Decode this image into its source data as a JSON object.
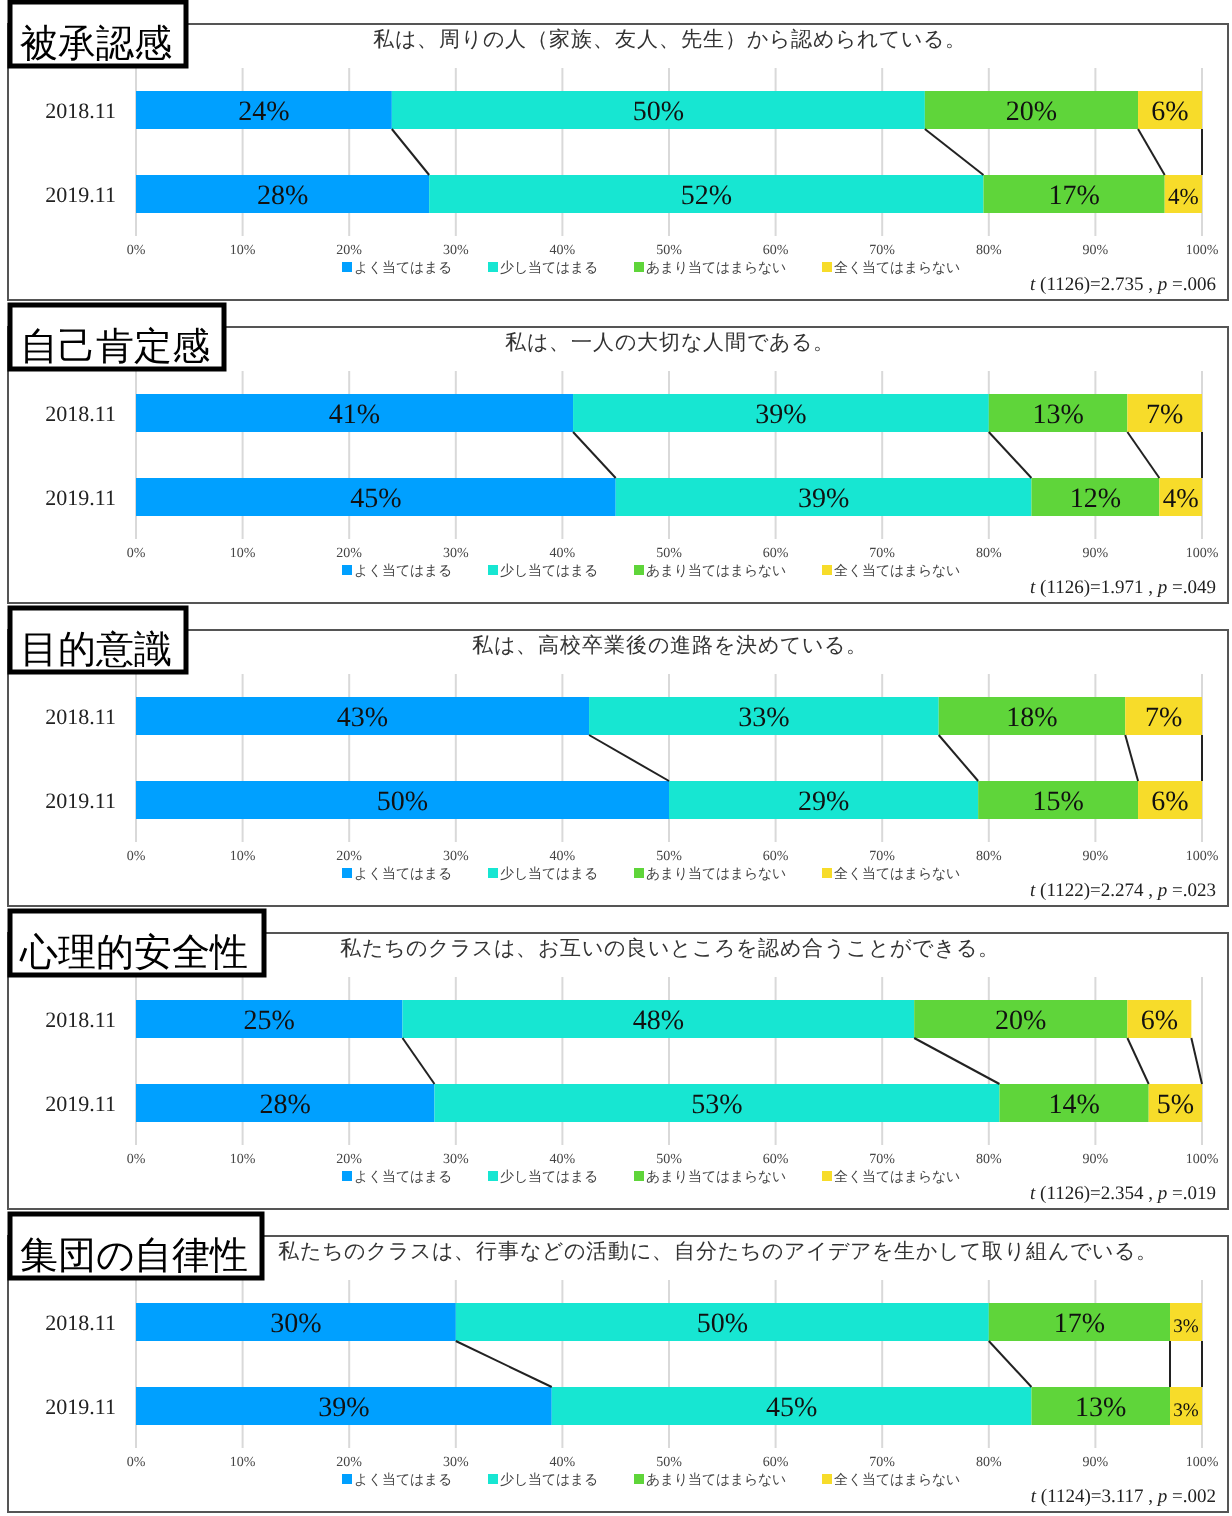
{
  "chart_data": [
    {
      "type": "bar",
      "orientation": "horizontal",
      "stacked": true,
      "title": "被承認感",
      "subtitle": "私は、周りの人（家族、友人、先生）から認められている。",
      "categories": [
        "2018.11",
        "2019.11"
      ],
      "xlim": [
        0,
        100
      ],
      "xticks": [
        {
          "value": 0,
          "label": "0%"
        },
        {
          "value": 10,
          "label": "10%"
        },
        {
          "value": 20,
          "label": "20%"
        },
        {
          "value": 30,
          "label": "30%"
        },
        {
          "value": 40,
          "label": "40%"
        },
        {
          "value": 50,
          "label": "50%"
        },
        {
          "value": 60,
          "label": "60%"
        },
        {
          "value": 70,
          "label": "70%"
        },
        {
          "value": 80,
          "label": "80%"
        },
        {
          "value": 90,
          "label": "90%"
        },
        {
          "value": 100,
          "label": "100%"
        }
      ],
      "grid": "x",
      "legend": "bottom",
      "annotations": [
        "*t* (1126)=2.735 , *p* =.006"
      ],
      "series": [
        {
          "name": "よく当てはまる",
          "color": "#00a0ff",
          "values": [
            24,
            27.5
          ],
          "value_labels": [
            "24%",
            "28%"
          ]
        },
        {
          "name": "少し当てはまる",
          "color": "#17e6d2",
          "values": [
            50,
            52
          ],
          "value_labels": [
            "50%",
            "52%"
          ]
        },
        {
          "name": "あまり当てはまらない",
          "color": "#5fd53a",
          "values": [
            20,
            17
          ],
          "value_labels": [
            "20%",
            "17%"
          ]
        },
        {
          "name": "全く当てはまらない",
          "color": "#f7dc2a",
          "values": [
            6,
            3.5
          ],
          "value_labels": [
            "6%",
            "4%"
          ]
        }
      ]
    },
    {
      "type": "bar",
      "orientation": "horizontal",
      "stacked": true,
      "title": "自己肯定感",
      "subtitle": "私は、一人の大切な人間である。",
      "categories": [
        "2018.11",
        "2019.11"
      ],
      "xlim": [
        0,
        100
      ],
      "xticks": [
        {
          "value": 0,
          "label": "0%"
        },
        {
          "value": 10,
          "label": "10%"
        },
        {
          "value": 20,
          "label": "20%"
        },
        {
          "value": 30,
          "label": "30%"
        },
        {
          "value": 40,
          "label": "40%"
        },
        {
          "value": 50,
          "label": "50%"
        },
        {
          "value": 60,
          "label": "60%"
        },
        {
          "value": 70,
          "label": "70%"
        },
        {
          "value": 80,
          "label": "80%"
        },
        {
          "value": 90,
          "label": "90%"
        },
        {
          "value": 100,
          "label": "100%"
        }
      ],
      "grid": "x",
      "legend": "bottom",
      "annotations": [
        "*t* (1126)=1.971 , *p* =.049"
      ],
      "series": [
        {
          "name": "よく当てはまる",
          "color": "#00a0ff",
          "values": [
            41,
            45
          ],
          "value_labels": [
            "41%",
            "45%"
          ]
        },
        {
          "name": "少し当てはまる",
          "color": "#17e6d2",
          "values": [
            39,
            39
          ],
          "value_labels": [
            "39%",
            "39%"
          ]
        },
        {
          "name": "あまり当てはまらない",
          "color": "#5fd53a",
          "values": [
            13,
            12
          ],
          "value_labels": [
            "13%",
            "12%"
          ]
        },
        {
          "name": "全く当てはまらない",
          "color": "#f7dc2a",
          "values": [
            7,
            4
          ],
          "value_labels": [
            "7%",
            "4%"
          ]
        }
      ]
    },
    {
      "type": "bar",
      "orientation": "horizontal",
      "stacked": true,
      "title": "目的意識",
      "subtitle": "私は、高校卒業後の進路を決めている。",
      "categories": [
        "2018.11",
        "2019.11"
      ],
      "xlim": [
        0,
        100
      ],
      "xticks": [
        {
          "value": 0,
          "label": "0%"
        },
        {
          "value": 10,
          "label": "10%"
        },
        {
          "value": 20,
          "label": "20%"
        },
        {
          "value": 30,
          "label": "30%"
        },
        {
          "value": 40,
          "label": "40%"
        },
        {
          "value": 50,
          "label": "50%"
        },
        {
          "value": 60,
          "label": "60%"
        },
        {
          "value": 70,
          "label": "70%"
        },
        {
          "value": 80,
          "label": "80%"
        },
        {
          "value": 90,
          "label": "90%"
        },
        {
          "value": 100,
          "label": "100%"
        }
      ],
      "grid": "x",
      "legend": "bottom",
      "annotations": [
        "*t* (1122)=2.274 , *p* =.023"
      ],
      "series": [
        {
          "name": "よく当てはまる",
          "color": "#00a0ff",
          "values": [
            42.5,
            50
          ],
          "value_labels": [
            "43%",
            "50%"
          ]
        },
        {
          "name": "少し当てはまる",
          "color": "#17e6d2",
          "values": [
            32.8,
            29
          ],
          "value_labels": [
            "33%",
            "29%"
          ]
        },
        {
          "name": "あまり当てはまらない",
          "color": "#5fd53a",
          "values": [
            17.5,
            15
          ],
          "value_labels": [
            "18%",
            "15%"
          ]
        },
        {
          "name": "全く当てはまらない",
          "color": "#f7dc2a",
          "values": [
            7.2,
            6
          ],
          "value_labels": [
            "7%",
            "6%"
          ]
        }
      ]
    },
    {
      "type": "bar",
      "orientation": "horizontal",
      "stacked": true,
      "title": "心理的安全性",
      "subtitle": "私たちのクラスは、お互いの良いところを認め合うことができる。",
      "categories": [
        "2018.11",
        "2019.11"
      ],
      "xlim": [
        0,
        100
      ],
      "xticks": [
        {
          "value": 0,
          "label": "0%"
        },
        {
          "value": 10,
          "label": "10%"
        },
        {
          "value": 20,
          "label": "20%"
        },
        {
          "value": 30,
          "label": "30%"
        },
        {
          "value": 40,
          "label": "40%"
        },
        {
          "value": 50,
          "label": "50%"
        },
        {
          "value": 60,
          "label": "60%"
        },
        {
          "value": 70,
          "label": "70%"
        },
        {
          "value": 80,
          "label": "80%"
        },
        {
          "value": 90,
          "label": "90%"
        },
        {
          "value": 100,
          "label": "100%"
        }
      ],
      "grid": "x",
      "legend": "bottom",
      "annotations": [
        "*t* (1126)=2.354 , *p* =.019"
      ],
      "series": [
        {
          "name": "よく当てはまる",
          "color": "#00a0ff",
          "values": [
            25,
            28
          ],
          "value_labels": [
            "25%",
            "28%"
          ]
        },
        {
          "name": "少し当てはまる",
          "color": "#17e6d2",
          "values": [
            48,
            53
          ],
          "value_labels": [
            "48%",
            "53%"
          ]
        },
        {
          "name": "あまり当てはまらない",
          "color": "#5fd53a",
          "values": [
            20,
            14
          ],
          "value_labels": [
            "20%",
            "14%"
          ]
        },
        {
          "name": "全く当てはまらない",
          "color": "#f7dc2a",
          "values": [
            6,
            5
          ],
          "value_labels": [
            "6%",
            "5%"
          ]
        }
      ]
    },
    {
      "type": "bar",
      "orientation": "horizontal",
      "stacked": true,
      "title": "集団の自律性",
      "subtitle": "私たちのクラスは、行事などの活動に、自分たちのアイデアを生かして取り組んでいる。",
      "categories": [
        "2018.11",
        "2019.11"
      ],
      "xlim": [
        0,
        100
      ],
      "xticks": [
        {
          "value": 0,
          "label": "0%"
        },
        {
          "value": 10,
          "label": "10%"
        },
        {
          "value": 20,
          "label": "20%"
        },
        {
          "value": 30,
          "label": "30%"
        },
        {
          "value": 40,
          "label": "40%"
        },
        {
          "value": 50,
          "label": "50%"
        },
        {
          "value": 60,
          "label": "60%"
        },
        {
          "value": 70,
          "label": "70%"
        },
        {
          "value": 80,
          "label": "80%"
        },
        {
          "value": 90,
          "label": "90%"
        },
        {
          "value": 100,
          "label": "100%"
        }
      ],
      "grid": "x",
      "legend": "bottom",
      "annotations": [
        "*t* (1124)=3.117 , *p* =.002"
      ],
      "series": [
        {
          "name": "よく当てはまる",
          "color": "#00a0ff",
          "values": [
            30,
            39
          ],
          "value_labels": [
            "30%",
            "39%"
          ]
        },
        {
          "name": "少し当てはまる",
          "color": "#17e6d2",
          "values": [
            50,
            45
          ],
          "value_labels": [
            "50%",
            "45%"
          ]
        },
        {
          "name": "あまり当てはまらない",
          "color": "#5fd53a",
          "values": [
            17,
            13
          ],
          "value_labels": [
            "17%",
            "13%"
          ]
        },
        {
          "name": "全く当てはまらない",
          "color": "#f7dc2a",
          "values": [
            3,
            3
          ],
          "value_labels": [
            "3%",
            "3%"
          ]
        }
      ]
    }
  ]
}
